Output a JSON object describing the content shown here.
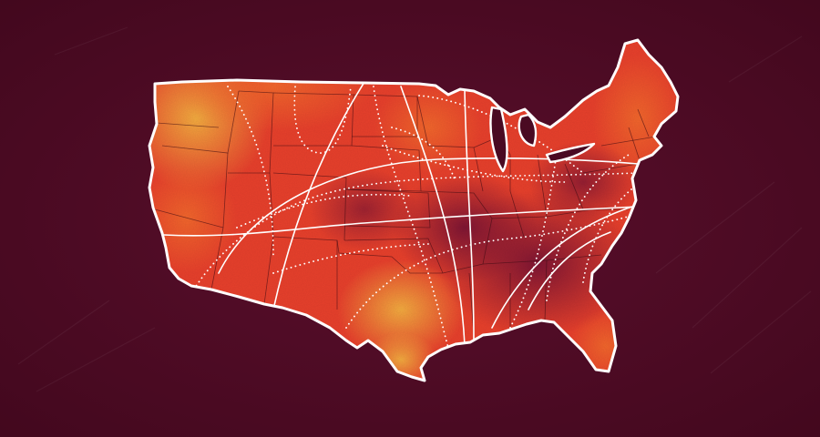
{
  "colors": {
    "background": "#4a0a22",
    "heat_dark": "#6e1030",
    "heat_red": "#e23a2a",
    "heat_orange": "#f0602a",
    "heat_yellow": "#f2a83a",
    "outline": "#ffffff",
    "state_borders": "#3a0a12"
  },
  "legend": null
}
